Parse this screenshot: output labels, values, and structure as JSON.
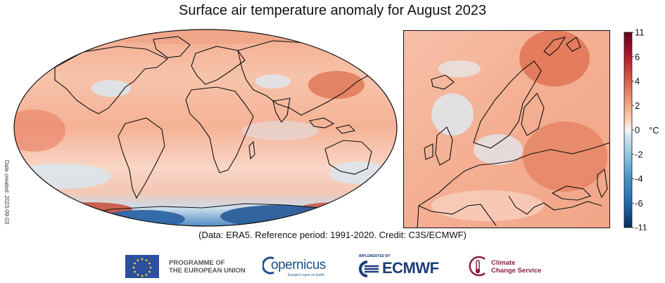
{
  "title": "Surface air temperature anomaly for August 2023",
  "date_created": "Date created: 2023-09-03",
  "credit": "(Data: ERA5.  Reference period: 1991-2020.  Credit: C3S/ECMWF)",
  "colorbar": {
    "unit": "°C",
    "ticks": [
      "11",
      "6",
      "4",
      "2",
      "0",
      "-2",
      "-4",
      "-6",
      "-11"
    ],
    "colors": [
      "#67001f",
      "#b2182b",
      "#d6604d",
      "#f4a582",
      "#fddbc7",
      "#f7f7f7",
      "#d1e5f0",
      "#92c5de",
      "#4393c3",
      "#2166ac",
      "#053061"
    ]
  },
  "maps": {
    "global": {
      "name": "Global map"
    },
    "europe": {
      "name": "Europe map"
    }
  },
  "logos": {
    "eu_line1": "PROGRAMME OF",
    "eu_line2": "THE EUROPEAN UNION",
    "copernicus_word": "opernicus",
    "copernicus_tagline": "Europe's eyes on Earth",
    "ecmwf_implemented": "IMPLEMENTED BY",
    "ecmwf_word": "ECMWF",
    "c3s_line1": "Climate",
    "c3s_line2": "Change Service"
  }
}
